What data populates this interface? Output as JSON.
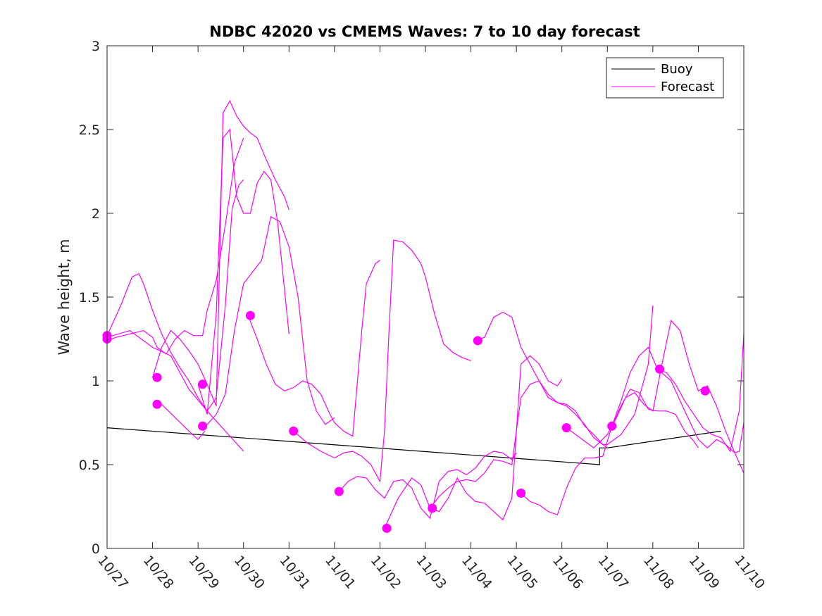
{
  "chart_data": {
    "type": "line",
    "title": "NDBC 42020 vs CMEMS Waves: 7 to 10 day forecast",
    "xlabel": "",
    "ylabel": "Wave height, m",
    "xlim": [
      0,
      14
    ],
    "ylim": [
      0,
      3
    ],
    "x_tick_values": [
      0,
      1,
      2,
      3,
      4,
      5,
      6,
      7,
      8,
      9,
      10,
      11,
      12,
      13,
      14
    ],
    "x_tick_labels": [
      "10/27",
      "10/28",
      "10/29",
      "10/30",
      "10/31",
      "11/01",
      "11/02",
      "11/03",
      "11/04",
      "11/05",
      "11/06",
      "11/07",
      "11/08",
      "11/09",
      "11/10"
    ],
    "y_ticks": [
      0,
      0.5,
      1,
      1.5,
      2,
      2.5,
      3
    ],
    "y_tick_labels": [
      "0",
      "0.5",
      "1",
      "1.5",
      "2",
      "2.5",
      "3"
    ],
    "legend": {
      "position": "top-right",
      "entries": [
        {
          "label": "Buoy",
          "color": "#000000"
        },
        {
          "label": "Forecast",
          "color": "#ff00ff"
        }
      ]
    },
    "colors": {
      "buoy": "#000000",
      "forecast": "#ff00ff",
      "axis": "#262626"
    },
    "series": [
      {
        "name": "Buoy",
        "x": [
          0,
          10.83,
          10.83,
          11,
          13.5
        ],
        "y": [
          0.72,
          0.5,
          0.6,
          0.6,
          0.7
        ]
      },
      {
        "name": "Forecast",
        "x": [
          0,
          0.3,
          0.55,
          0.7,
          0.8,
          1,
          1.2,
          1.4,
          1.6,
          1.8,
          2,
          2.2,
          2.4,
          2.6,
          2.75,
          2.9,
          3
        ],
        "y": [
          1.27,
          1.45,
          1.62,
          1.64,
          1.58,
          1.42,
          1.28,
          1.17,
          1.08,
          1.0,
          0.9,
          0.82,
          0.9,
          1.45,
          2.03,
          2.17,
          2.2
        ]
      },
      {
        "name": "Forecast",
        "x": [
          0,
          0.2,
          0.5,
          0.8,
          1,
          1.1,
          1.3,
          1.5,
          1.7,
          1.9,
          2.1,
          2.2,
          2.4,
          2.6,
          2.8,
          3
        ],
        "y": [
          1.24,
          1.26,
          1.28,
          1.3,
          1.26,
          1.2,
          1.16,
          1.25,
          1.3,
          1.27,
          1.27,
          1.42,
          1.6,
          1.93,
          2.3,
          2.45
        ]
      },
      {
        "name": "Forecast",
        "x": [
          1,
          1.2,
          1.4,
          1.6,
          1.8,
          2,
          2.2,
          2.4,
          2.55,
          2.7,
          2.85,
          3,
          3.15,
          3.3,
          3.5,
          3.7,
          3.9,
          4
        ],
        "y": [
          1.02,
          1.2,
          1.3,
          1.25,
          1.18,
          1.1,
          0.98,
          0.85,
          2.6,
          2.67,
          2.58,
          2.52,
          2.48,
          2.45,
          2.32,
          2.2,
          2.1,
          2.02
        ]
      },
      {
        "name": "Forecast",
        "x": [
          1,
          1.2,
          1.5,
          1.8,
          2,
          2.15
        ],
        "y": [
          0.86,
          0.86,
          0.78,
          0.7,
          0.65,
          0.7
        ]
      },
      {
        "name": "Forecast",
        "x": [
          2,
          2.2,
          2.4,
          2.55,
          2.7,
          2.85,
          3,
          3.15,
          3.3,
          3.45,
          3.6,
          3.75,
          4
        ],
        "y": [
          0.98,
          0.8,
          1.4,
          2.45,
          2.5,
          2.1,
          2.0,
          2.0,
          2.18,
          2.25,
          2.2,
          1.95,
          1.28
        ]
      },
      {
        "name": "Forecast",
        "x": [
          2,
          2.2,
          2.4,
          2.6,
          2.8,
          3,
          3.2,
          3.4,
          3.6,
          3.8,
          4,
          4.2,
          4.4,
          4.6,
          4.8,
          5
        ],
        "y": [
          0.73,
          0.74,
          0.8,
          0.92,
          1.3,
          1.58,
          1.65,
          1.72,
          1.98,
          1.95,
          1.8,
          1.5,
          1.0,
          0.82,
          0.74,
          0.78
        ]
      },
      {
        "name": "Forecast",
        "x": [
          0,
          0.5,
          1,
          1.4,
          1.8,
          2.2,
          2.6,
          3
        ],
        "y": [
          1.26,
          1.3,
          1.2,
          1.15,
          0.95,
          0.82,
          0.7,
          0.58
        ]
      },
      {
        "name": "Forecast",
        "x": [
          3.1,
          3.3,
          3.5,
          3.7,
          3.9,
          4.1,
          4.3,
          4.5,
          4.7,
          4.9,
          5,
          5.2,
          5.4,
          5.6,
          5.7,
          5.9,
          6
        ],
        "y": [
          1.39,
          1.25,
          1.1,
          0.98,
          0.94,
          0.96,
          1.0,
          0.98,
          0.92,
          0.8,
          0.75,
          0.7,
          0.67,
          1.3,
          1.58,
          1.7,
          1.72
        ]
      },
      {
        "name": "Forecast",
        "x": [
          4.1,
          4.4,
          4.7,
          5,
          5.2,
          5.4,
          5.6,
          5.8,
          6,
          6.1,
          6.2,
          6.3,
          6.5,
          6.7,
          6.9,
          7,
          7.2,
          7.4,
          7.6,
          7.8,
          8
        ],
        "y": [
          0.7,
          0.63,
          0.58,
          0.54,
          0.57,
          0.58,
          0.55,
          0.5,
          0.4,
          0.7,
          1.3,
          1.84,
          1.83,
          1.78,
          1.7,
          1.62,
          1.4,
          1.22,
          1.17,
          1.14,
          1.12
        ]
      },
      {
        "name": "Forecast",
        "x": [
          5.1,
          5.3,
          5.5,
          5.7,
          5.9,
          6.1,
          6.3,
          6.5,
          6.7,
          6.9,
          7.1,
          7.3,
          7.5,
          7.7,
          7.9,
          8.1,
          8.3,
          8.5,
          8.7,
          8.9,
          9
        ],
        "y": [
          0.34,
          0.4,
          0.43,
          0.42,
          0.35,
          0.3,
          0.4,
          0.41,
          0.36,
          0.24,
          0.18,
          0.4,
          0.46,
          0.47,
          0.44,
          0.48,
          0.55,
          0.58,
          0.57,
          0.53,
          0.57
        ]
      },
      {
        "name": "Forecast",
        "x": [
          6.1,
          6.4,
          6.7,
          6.9,
          7.1,
          7.3,
          7.5,
          7.7,
          7.9,
          8.1,
          8.3,
          8.5,
          8.7,
          8.9,
          9.1,
          9.3,
          9.5,
          9.7,
          9.9,
          10
        ],
        "y": [
          0.12,
          0.3,
          0.42,
          0.38,
          0.24,
          0.22,
          0.3,
          0.42,
          0.33,
          0.28,
          0.27,
          0.22,
          0.17,
          0.3,
          1.1,
          1.15,
          1.1,
          1.0,
          0.97,
          1.01
        ]
      },
      {
        "name": "Forecast",
        "x": [
          7.1,
          7.3,
          7.5,
          7.7,
          7.9,
          8.1,
          8.3,
          8.5,
          8.7,
          8.9,
          9.1,
          9.3,
          9.5,
          9.7,
          9.9,
          10.1,
          10.3,
          10.5,
          10.7,
          11
        ],
        "y": [
          0.24,
          0.31,
          0.36,
          0.4,
          0.41,
          0.4,
          0.45,
          0.53,
          0.52,
          0.5,
          0.9,
          0.98,
          1.0,
          0.9,
          0.87,
          0.85,
          0.8,
          0.74,
          0.66,
          0.6
        ]
      },
      {
        "name": "Forecast",
        "x": [
          8.1,
          8.3,
          8.5,
          8.7,
          8.9,
          9.1,
          9.3,
          9.5,
          9.7,
          9.9,
          10.1,
          10.3,
          10.5,
          10.7,
          10.9,
          11,
          11.3,
          11.6,
          11.9,
          12
        ],
        "y": [
          1.24,
          1.26,
          1.38,
          1.41,
          1.38,
          1.2,
          1.1,
          1.0,
          0.92,
          0.87,
          0.86,
          0.82,
          0.73,
          0.68,
          0.62,
          0.62,
          0.68,
          0.8,
          1.1,
          1.45
        ]
      },
      {
        "name": "Forecast",
        "x": [
          9.1,
          9.3,
          9.5,
          9.7,
          9.9,
          10.1,
          10.3,
          10.5,
          10.7,
          10.9,
          11.1,
          11.3,
          11.5,
          11.7,
          11.9,
          12.1,
          12.3,
          12.5,
          12.7,
          12.9,
          13
        ],
        "y": [
          0.33,
          0.28,
          0.26,
          0.22,
          0.2,
          0.36,
          0.48,
          0.54,
          0.54,
          0.55,
          0.73,
          0.85,
          0.95,
          0.93,
          0.83,
          0.82,
          0.82,
          0.8,
          0.7,
          0.64,
          0.6
        ]
      },
      {
        "name": "Forecast",
        "x": [
          10.1,
          10.4,
          10.7,
          11,
          11.2,
          11.4,
          11.6,
          11.8,
          12,
          12.2,
          12.4,
          12.6,
          12.8,
          13,
          13.2,
          13.4,
          13.6,
          13.8,
          14
        ],
        "y": [
          0.72,
          0.66,
          0.6,
          0.68,
          0.78,
          0.9,
          0.93,
          0.86,
          0.82,
          1.1,
          1.36,
          1.3,
          1.1,
          0.94,
          0.97,
          0.85,
          0.7,
          0.57,
          0.45
        ]
      },
      {
        "name": "Forecast",
        "x": [
          11.1,
          11.3,
          11.5,
          11.7,
          11.9,
          12.1,
          12.3,
          12.5,
          12.7,
          12.9,
          13.1,
          13.3,
          13.5,
          13.7,
          13.9,
          14
        ],
        "y": [
          0.73,
          0.88,
          1.05,
          1.15,
          1.2,
          1.07,
          1.05,
          0.98,
          0.88,
          0.8,
          0.72,
          0.68,
          0.66,
          0.58,
          0.82,
          1.28
        ]
      },
      {
        "name": "Forecast",
        "x": [
          12.1,
          12.4,
          12.7,
          13,
          13.2,
          13.4,
          13.6,
          13.8,
          13.9,
          14
        ],
        "y": [
          1.07,
          1.0,
          0.82,
          0.65,
          0.6,
          0.65,
          0.62,
          0.57,
          0.58,
          0.75
        ]
      }
    ],
    "markers": {
      "name": "Forecast",
      "x": [
        0,
        0,
        1.1,
        1.1,
        2.1,
        2.1,
        3.15,
        4.1,
        5.1,
        6.15,
        7.15,
        8.15,
        9.1,
        10.1,
        11.1,
        12.15,
        13.15
      ],
      "y": [
        1.27,
        1.25,
        1.02,
        0.86,
        0.98,
        0.73,
        1.39,
        0.7,
        0.34,
        0.12,
        0.24,
        1.24,
        0.33,
        0.72,
        0.73,
        1.07,
        0.94
      ]
    }
  }
}
